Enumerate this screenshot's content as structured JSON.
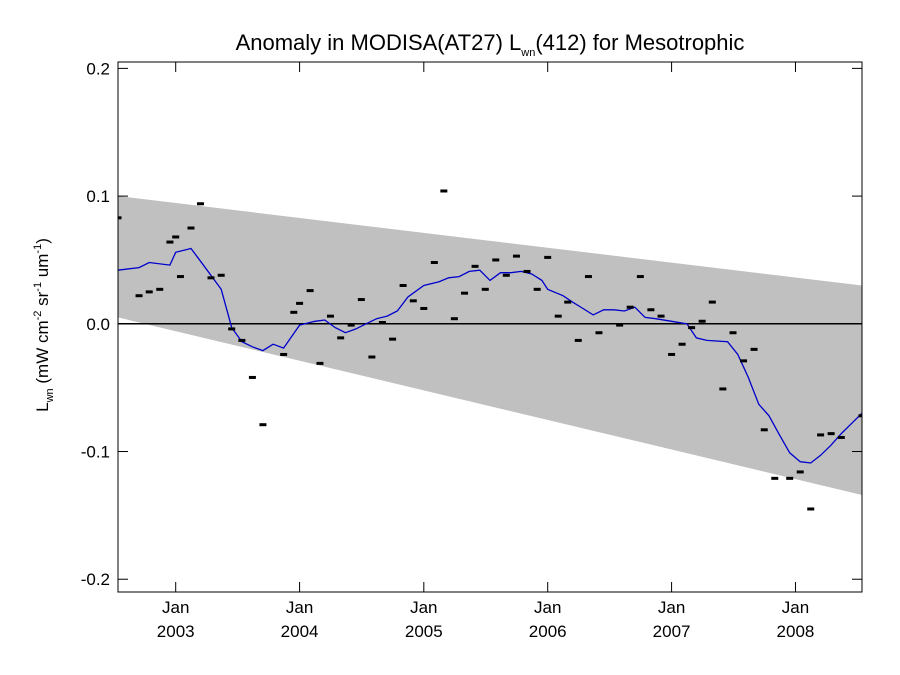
{
  "chart_data": {
    "type": "line",
    "title": {
      "prefix": "Anomaly in MODISA(AT27) L",
      "subscript": "wn",
      "suffix": "(412) for Mesotrophic"
    },
    "ylabel": {
      "l": "L",
      "l_sub": "wn",
      "open": " (mW cm",
      "exp1": "-2",
      "sr": " sr",
      "exp2": "-1",
      "um": " um",
      "exp3": "-1",
      "close": ")"
    },
    "xlabel": "",
    "xlim": [
      "2002-07-15",
      "2008-07-15"
    ],
    "ylim": [
      -0.21,
      0.205
    ],
    "yticks": [
      {
        "value": 0.2,
        "label": "0.2"
      },
      {
        "value": 0.1,
        "label": "0.1"
      },
      {
        "value": 0.0,
        "label": "0.0"
      },
      {
        "value": -0.1,
        "label": "-0.1"
      },
      {
        "value": -0.2,
        "label": "-0.2"
      }
    ],
    "xticks": [
      {
        "date": "2003-01-01",
        "month": "Jan",
        "year": "2003"
      },
      {
        "date": "2004-01-01",
        "month": "Jan",
        "year": "2004"
      },
      {
        "date": "2005-01-01",
        "month": "Jan",
        "year": "2005"
      },
      {
        "date": "2006-01-01",
        "month": "Jan",
        "year": "2006"
      },
      {
        "date": "2007-01-01",
        "month": "Jan",
        "year": "2007"
      },
      {
        "date": "2008-01-01",
        "month": "Jan",
        "year": "2008"
      }
    ],
    "zero_line": 0.0,
    "band": {
      "color": "#c0c0c0",
      "upper": [
        {
          "date": "2002-07-15",
          "value": 0.1
        },
        {
          "date": "2008-07-15",
          "value": 0.03
        }
      ],
      "lower": [
        {
          "date": "2002-07-15",
          "value": 0.005
        },
        {
          "date": "2008-07-15",
          "value": -0.134
        }
      ]
    },
    "series": [
      {
        "kind": "points",
        "color": "#000000",
        "points": [
          {
            "date": "2002-07-15",
            "value": 0.083
          },
          {
            "date": "2002-09-15",
            "value": 0.022
          },
          {
            "date": "2002-10-15",
            "value": 0.025
          },
          {
            "date": "2002-11-15",
            "value": 0.027
          },
          {
            "date": "2002-12-15",
            "value": 0.064
          },
          {
            "date": "2003-01-01",
            "value": 0.068
          },
          {
            "date": "2003-01-15",
            "value": 0.037
          },
          {
            "date": "2003-02-15",
            "value": 0.075
          },
          {
            "date": "2003-03-15",
            "value": 0.094
          },
          {
            "date": "2003-04-15",
            "value": 0.036
          },
          {
            "date": "2003-05-15",
            "value": 0.038
          },
          {
            "date": "2003-06-15",
            "value": -0.004
          },
          {
            "date": "2003-07-15",
            "value": -0.013
          },
          {
            "date": "2003-08-15",
            "value": -0.042
          },
          {
            "date": "2003-09-15",
            "value": -0.079
          },
          {
            "date": "2003-11-15",
            "value": -0.024
          },
          {
            "date": "2003-12-15",
            "value": 0.009
          },
          {
            "date": "2004-01-01",
            "value": 0.016
          },
          {
            "date": "2004-02-01",
            "value": 0.026
          },
          {
            "date": "2004-03-01",
            "value": -0.031
          },
          {
            "date": "2004-04-01",
            "value": 0.006
          },
          {
            "date": "2004-05-01",
            "value": -0.011
          },
          {
            "date": "2004-06-01",
            "value": -0.001
          },
          {
            "date": "2004-07-01",
            "value": 0.019
          },
          {
            "date": "2004-08-01",
            "value": -0.026
          },
          {
            "date": "2004-09-01",
            "value": 0.001
          },
          {
            "date": "2004-10-01",
            "value": -0.012
          },
          {
            "date": "2004-11-01",
            "value": 0.03
          },
          {
            "date": "2004-12-01",
            "value": 0.018
          },
          {
            "date": "2005-01-01",
            "value": 0.012
          },
          {
            "date": "2005-02-01",
            "value": 0.048
          },
          {
            "date": "2005-03-01",
            "value": 0.104
          },
          {
            "date": "2005-04-01",
            "value": 0.004
          },
          {
            "date": "2005-05-01",
            "value": 0.024
          },
          {
            "date": "2005-06-01",
            "value": 0.045
          },
          {
            "date": "2005-07-01",
            "value": 0.027
          },
          {
            "date": "2005-08-01",
            "value": 0.05
          },
          {
            "date": "2005-09-01",
            "value": 0.038
          },
          {
            "date": "2005-10-01",
            "value": 0.053
          },
          {
            "date": "2005-11-01",
            "value": 0.041
          },
          {
            "date": "2005-12-01",
            "value": 0.027
          },
          {
            "date": "2006-01-01",
            "value": 0.052
          },
          {
            "date": "2006-02-01",
            "value": 0.006
          },
          {
            "date": "2006-03-01",
            "value": 0.017
          },
          {
            "date": "2006-04-01",
            "value": -0.013
          },
          {
            "date": "2006-05-01",
            "value": 0.037
          },
          {
            "date": "2006-06-01",
            "value": -0.007
          },
          {
            "date": "2006-08-01",
            "value": -0.001
          },
          {
            "date": "2006-09-01",
            "value": 0.013
          },
          {
            "date": "2006-10-01",
            "value": 0.037
          },
          {
            "date": "2006-11-01",
            "value": 0.011
          },
          {
            "date": "2006-12-01",
            "value": 0.006
          },
          {
            "date": "2007-01-01",
            "value": -0.024
          },
          {
            "date": "2007-02-01",
            "value": -0.016
          },
          {
            "date": "2007-03-01",
            "value": -0.003
          },
          {
            "date": "2007-04-01",
            "value": 0.002
          },
          {
            "date": "2007-05-01",
            "value": 0.017
          },
          {
            "date": "2007-06-01",
            "value": -0.051
          },
          {
            "date": "2007-07-01",
            "value": -0.007
          },
          {
            "date": "2007-08-01",
            "value": -0.029
          },
          {
            "date": "2007-09-01",
            "value": -0.02
          },
          {
            "date": "2007-10-01",
            "value": -0.083
          },
          {
            "date": "2007-11-01",
            "value": -0.121
          },
          {
            "date": "2007-12-15",
            "value": -0.121
          },
          {
            "date": "2008-01-15",
            "value": -0.116
          },
          {
            "date": "2008-02-15",
            "value": -0.145
          },
          {
            "date": "2008-03-15",
            "value": -0.087
          },
          {
            "date": "2008-04-15",
            "value": -0.086
          },
          {
            "date": "2008-05-15",
            "value": -0.089
          },
          {
            "date": "2008-07-15",
            "value": -0.072
          }
        ]
      },
      {
        "kind": "line",
        "color": "#0000cc",
        "points": [
          {
            "date": "2002-07-15",
            "value": 0.042
          },
          {
            "date": "2002-09-15",
            "value": 0.044
          },
          {
            "date": "2002-10-15",
            "value": 0.048
          },
          {
            "date": "2002-12-15",
            "value": 0.046
          },
          {
            "date": "2003-01-01",
            "value": 0.056
          },
          {
            "date": "2003-02-15",
            "value": 0.059
          },
          {
            "date": "2003-03-15",
            "value": 0.049
          },
          {
            "date": "2003-05-15",
            "value": 0.027
          },
          {
            "date": "2003-06-15",
            "value": -0.003
          },
          {
            "date": "2003-07-15",
            "value": -0.014
          },
          {
            "date": "2003-08-15",
            "value": -0.018
          },
          {
            "date": "2003-09-15",
            "value": -0.021
          },
          {
            "date": "2003-10-15",
            "value": -0.016
          },
          {
            "date": "2003-11-15",
            "value": -0.019
          },
          {
            "date": "2004-01-01",
            "value": -0.001
          },
          {
            "date": "2004-02-15",
            "value": 0.002
          },
          {
            "date": "2004-03-15",
            "value": 0.003
          },
          {
            "date": "2004-04-15",
            "value": -0.003
          },
          {
            "date": "2004-05-15",
            "value": -0.007
          },
          {
            "date": "2004-06-15",
            "value": -0.004
          },
          {
            "date": "2004-07-15",
            "value": 0.0
          },
          {
            "date": "2004-08-15",
            "value": 0.004
          },
          {
            "date": "2004-09-15",
            "value": 0.006
          },
          {
            "date": "2004-10-15",
            "value": 0.01
          },
          {
            "date": "2004-11-15",
            "value": 0.021
          },
          {
            "date": "2005-01-01",
            "value": 0.03
          },
          {
            "date": "2005-02-15",
            "value": 0.033
          },
          {
            "date": "2005-03-15",
            "value": 0.036
          },
          {
            "date": "2005-04-15",
            "value": 0.037
          },
          {
            "date": "2005-05-15",
            "value": 0.041
          },
          {
            "date": "2005-06-15",
            "value": 0.042
          },
          {
            "date": "2005-07-15",
            "value": 0.034
          },
          {
            "date": "2005-08-15",
            "value": 0.04
          },
          {
            "date": "2005-09-15",
            "value": 0.04
          },
          {
            "date": "2005-10-15",
            "value": 0.041
          },
          {
            "date": "2005-11-15",
            "value": 0.039
          },
          {
            "date": "2005-12-15",
            "value": 0.034
          },
          {
            "date": "2006-01-01",
            "value": 0.027
          },
          {
            "date": "2006-02-15",
            "value": 0.022
          },
          {
            "date": "2006-03-15",
            "value": 0.017
          },
          {
            "date": "2006-04-15",
            "value": 0.012
          },
          {
            "date": "2006-05-15",
            "value": 0.007
          },
          {
            "date": "2006-06-15",
            "value": 0.011
          },
          {
            "date": "2006-07-15",
            "value": 0.011
          },
          {
            "date": "2006-08-15",
            "value": 0.01
          },
          {
            "date": "2006-09-15",
            "value": 0.013
          },
          {
            "date": "2006-10-15",
            "value": 0.005
          },
          {
            "date": "2006-11-15",
            "value": 0.004
          },
          {
            "date": "2007-01-01",
            "value": 0.002
          },
          {
            "date": "2007-02-15",
            "value": 0.0
          },
          {
            "date": "2007-03-15",
            "value": -0.011
          },
          {
            "date": "2007-04-15",
            "value": -0.013
          },
          {
            "date": "2007-06-15",
            "value": -0.014
          },
          {
            "date": "2007-07-15",
            "value": -0.024
          },
          {
            "date": "2007-08-15",
            "value": -0.042
          },
          {
            "date": "2007-09-15",
            "value": -0.063
          },
          {
            "date": "2007-10-15",
            "value": -0.072
          },
          {
            "date": "2007-11-15",
            "value": -0.087
          },
          {
            "date": "2007-12-15",
            "value": -0.101
          },
          {
            "date": "2008-01-15",
            "value": -0.108
          },
          {
            "date": "2008-02-15",
            "value": -0.109
          },
          {
            "date": "2008-03-15",
            "value": -0.103
          },
          {
            "date": "2008-04-15",
            "value": -0.095
          },
          {
            "date": "2008-05-15",
            "value": -0.086
          },
          {
            "date": "2008-07-15",
            "value": -0.07
          }
        ]
      }
    ],
    "grid": false,
    "legend": "none"
  }
}
